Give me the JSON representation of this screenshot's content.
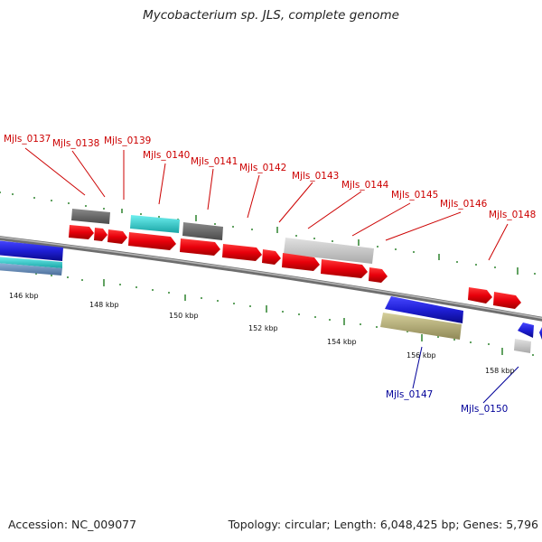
{
  "title": "Mycobacterium sp. JLS, complete genome",
  "footer": {
    "accession": "Accession: NC_009077",
    "summary": "Topology: circular; Length: 6,048,425 bp; Genes: 5,796"
  },
  "colors": {
    "forward_gene": "#e8000b",
    "reverse_gene": "#1f1fd6",
    "feature_dark": "#6a6a6a",
    "feature_light": "#c8c8c8",
    "feature_cyan": "#2ccfcf",
    "feature_olive": "#b9b27a",
    "backbone": "#8a8a8a",
    "tick_green": "#1f7a1f"
  },
  "scale_labels": [
    "146 kbp",
    "148 kbp",
    "150 kbp",
    "152 kbp",
    "154 kbp",
    "156 kbp",
    "158 kbp"
  ],
  "gene_labels_top": [
    "Mjls_0137",
    "Mjls_0138",
    "Mjls_0139",
    "Mjls_0140",
    "Mjls_0141",
    "Mjls_0142",
    "Mjls_0143",
    "Mjls_0144",
    "Mjls_0145",
    "Mjls_0146",
    "Mjls_0148"
  ],
  "gene_labels_bottom": [
    "Mjls_0147",
    "Mjls_0150"
  ]
}
